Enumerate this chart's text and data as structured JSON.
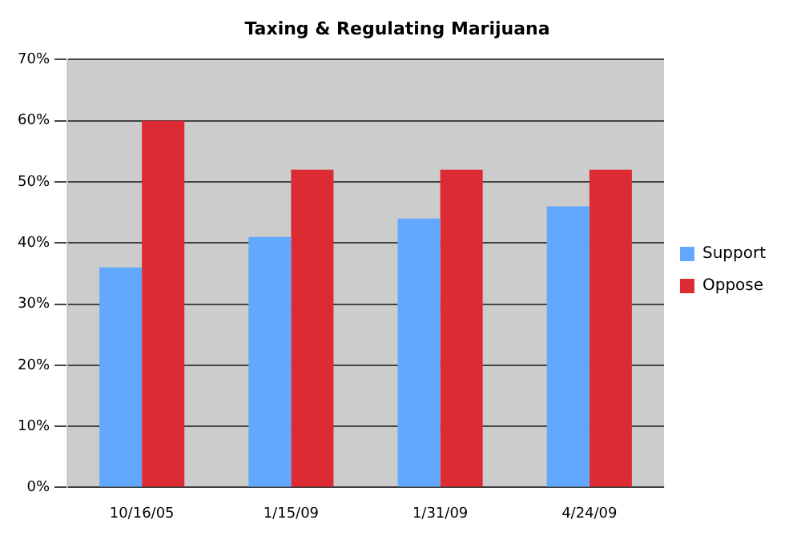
{
  "chart_data": {
    "type": "bar",
    "title": "Taxing & Regulating Marijuana",
    "categories": [
      "10/16/05",
      "1/15/09",
      "1/31/09",
      "4/24/09"
    ],
    "series": [
      {
        "name": "Support",
        "color": "#62a8fc",
        "values": [
          36,
          41,
          44,
          46
        ]
      },
      {
        "name": "Oppose",
        "color": "#dc2b32",
        "values": [
          60,
          52,
          52,
          52
        ]
      }
    ],
    "ylim": [
      0,
      70
    ],
    "yticks": [
      {
        "value": 0,
        "label": "0%"
      },
      {
        "value": 10,
        "label": "10%"
      },
      {
        "value": 20,
        "label": "20%"
      },
      {
        "value": 30,
        "label": "30%"
      },
      {
        "value": 40,
        "label": "40%"
      },
      {
        "value": 50,
        "label": "50%"
      },
      {
        "value": 60,
        "label": "60%"
      },
      {
        "value": 70,
        "label": "70%"
      }
    ],
    "grid": "y",
    "legend": "right"
  }
}
